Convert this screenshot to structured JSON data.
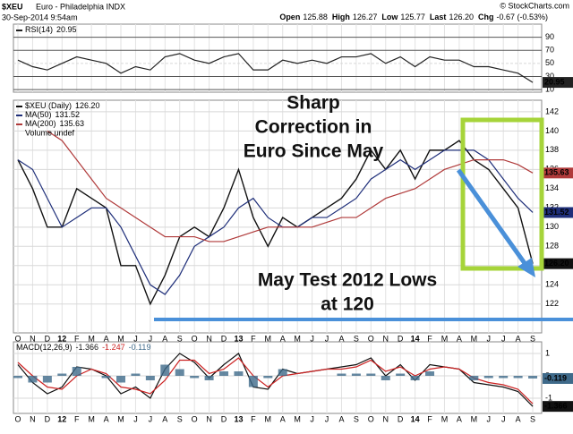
{
  "header": {
    "symbol": "$XEU",
    "name": "Euro - Philadelphia INDX",
    "date": "30-Sep-2014 9:54am",
    "credit": "© StockCharts.com",
    "quote": [
      {
        "label": "Open",
        "value": "125.88"
      },
      {
        "label": "High",
        "value": "126.27"
      },
      {
        "label": "Low",
        "value": "125.77"
      },
      {
        "label": "Last",
        "value": "126.20"
      },
      {
        "label": "Chg",
        "value": "-0.67 (-0.53%)"
      }
    ]
  },
  "chart_data": [
    {
      "type": "line",
      "ylim": [
        6,
        110
      ],
      "yticks": [
        10,
        30,
        50,
        70,
        90
      ],
      "grid": true,
      "series": [
        {
          "name": "RSI(14)",
          "color": "#222222",
          "right_label": true,
          "values": [
            55,
            45,
            40,
            50,
            60,
            55,
            50,
            35,
            45,
            40,
            60,
            65,
            55,
            50,
            60,
            65,
            40,
            40,
            55,
            50,
            55,
            50,
            60,
            60,
            65,
            50,
            60,
            45,
            60,
            55,
            55,
            45,
            45,
            40,
            35,
            20.95
          ]
        }
      ]
    },
    {
      "type": "line",
      "ylim": [
        119,
        143.2
      ],
      "yticks": [
        122,
        124,
        126,
        128,
        130,
        132,
        134,
        136,
        138,
        140,
        142
      ],
      "grid": true,
      "categories": [
        "O",
        "N",
        "D",
        "12",
        "F",
        "M",
        "A",
        "M",
        "J",
        "J",
        "A",
        "S",
        "O",
        "N",
        "D",
        "13",
        "F",
        "M",
        "A",
        "M",
        "J",
        "J",
        "A",
        "S",
        "O",
        "N",
        "D",
        "14",
        "F",
        "M",
        "A",
        "M",
        "J",
        "J",
        "A",
        "S"
      ],
      "legend_extra": "Volume undef",
      "annotations": [
        [
          "Sharp",
          "Correction in",
          "Euro Since May"
        ],
        [
          "May Test 2012 Lows",
          "at 120"
        ]
      ],
      "series": [
        {
          "name": "$XEU (Daily)",
          "color": "#111111",
          "right_label": true,
          "values": [
            137,
            134,
            130,
            130,
            134,
            133,
            132,
            126,
            126,
            122,
            125,
            129,
            130,
            129,
            132,
            136,
            131,
            128,
            131,
            130,
            131,
            132,
            133,
            135,
            138,
            136,
            138,
            135,
            138,
            138,
            139,
            137,
            136,
            134,
            132,
            126.2
          ],
          "value_labels": [
            null,
            null,
            null,
            null,
            null,
            null,
            null,
            null,
            null,
            null,
            null,
            null,
            null,
            null,
            null,
            null,
            null,
            null,
            null,
            null,
            null,
            null,
            null,
            null,
            null,
            null,
            null,
            null,
            null,
            null,
            null,
            null,
            null,
            null,
            null,
            "126.20"
          ]
        },
        {
          "name": "MA(50)",
          "color": "#1f2f7a",
          "right_label": true,
          "values": [
            137,
            136,
            133,
            130,
            131,
            132,
            132,
            130,
            127,
            124,
            123,
            125,
            128,
            129,
            130,
            132,
            133,
            131,
            130,
            130,
            131,
            131,
            132,
            133,
            135,
            136,
            137,
            136,
            137,
            138,
            138,
            138,
            137,
            135,
            133,
            131.52
          ]
        },
        {
          "name": "MA(200)",
          "color": "#b03a3a",
          "right_label": true,
          "values": [
            null,
            null,
            140,
            139,
            137,
            135,
            133,
            132,
            131,
            130,
            129,
            129,
            129,
            128.5,
            128.5,
            129,
            129.5,
            130,
            130,
            130,
            130,
            130.5,
            131,
            131,
            132,
            133,
            133.5,
            134,
            135,
            136,
            136.5,
            137,
            137,
            137,
            136.5,
            135.63
          ]
        }
      ]
    },
    {
      "type": "line",
      "ylim": [
        -1.68,
        1.52
      ],
      "yticks": [
        1,
        0,
        -1
      ],
      "grid": true,
      "legend_title": "MACD(12,26,9)",
      "categories": [
        "O",
        "N",
        "D",
        "12",
        "F",
        "M",
        "A",
        "M",
        "J",
        "J",
        "A",
        "S",
        "O",
        "N",
        "D",
        "13",
        "F",
        "M",
        "A",
        "M",
        "J",
        "J",
        "A",
        "S",
        "O",
        "N",
        "D",
        "14",
        "F",
        "M",
        "A",
        "M",
        "J",
        "J",
        "A",
        "S"
      ],
      "series": [
        {
          "color": "#111111",
          "right_label": true,
          "values": [
            0.5,
            -0.3,
            -0.8,
            -0.5,
            0.4,
            0.3,
            0,
            -0.8,
            -0.5,
            -1,
            0.3,
            1,
            0.6,
            -0.1,
            0.5,
            1,
            -0.5,
            -0.6,
            0.3,
            0.1,
            0.2,
            0.3,
            0.4,
            0.5,
            0.8,
            0,
            0.5,
            -0.2,
            0.5,
            0.4,
            0.3,
            -0.3,
            -0.4,
            -0.5,
            -0.7,
            -1.366
          ]
        },
        {
          "color": "#cc2222",
          "values": [
            0.6,
            0,
            -0.5,
            -0.6,
            0,
            0.3,
            0.1,
            -0.5,
            -0.6,
            -0.8,
            -0.2,
            0.7,
            0.7,
            0.1,
            0.3,
            0.8,
            0,
            -0.5,
            0,
            0.1,
            0.2,
            0.3,
            0.3,
            0.4,
            0.7,
            0.2,
            0.4,
            0,
            0.3,
            0.4,
            0.3,
            -0.1,
            -0.3,
            -0.4,
            -0.6,
            -1.247
          ]
        },
        {
          "type": "bar",
          "color": "#3f6a8a",
          "right_label": true,
          "values": [
            -0.1,
            -0.3,
            -0.3,
            0.1,
            0.4,
            0,
            -0.1,
            -0.3,
            0.1,
            -0.2,
            0.5,
            0.3,
            -0.1,
            -0.2,
            0.2,
            0.2,
            -0.5,
            -0.1,
            0.3,
            0,
            0,
            0,
            0.1,
            0.1,
            0.1,
            -0.2,
            0.1,
            -0.2,
            0.2,
            0,
            0,
            -0.2,
            -0.1,
            -0.1,
            -0.1,
            -0.119
          ]
        }
      ]
    }
  ]
}
